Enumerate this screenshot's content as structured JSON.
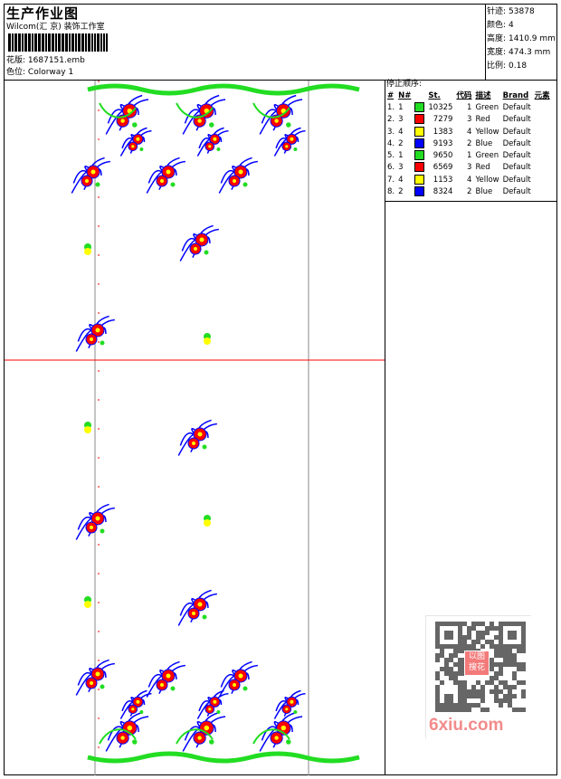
{
  "header": {
    "title": "生产作业图",
    "company": "Wilcom(汇 京) 装饰工作室",
    "design_label": "花版:",
    "design_value": "1687151.emb",
    "colorway_label": "色位:",
    "colorway_value": "Colorway 1"
  },
  "stats": [
    {
      "label": "针迹:",
      "value": "53878"
    },
    {
      "label": "颜色:",
      "value": "4"
    },
    {
      "label": "高度:",
      "value": "1410.9 mm"
    },
    {
      "label": "宽度:",
      "value": "474.3 mm"
    },
    {
      "label": "比例:",
      "value": "0.18"
    }
  ],
  "stop_sequence": {
    "title": "停止顺序:",
    "columns": [
      "#",
      "N#",
      "",
      "St.",
      "代码",
      "描述",
      "Brand",
      "元素"
    ],
    "rows": [
      {
        "idx": "1.",
        "n": "1",
        "color": "#22dd22",
        "st": "10325",
        "code": "1",
        "desc": "Green",
        "brand": "Default"
      },
      {
        "idx": "2.",
        "n": "3",
        "color": "#ff0000",
        "st": "7279",
        "code": "3",
        "desc": "Red",
        "brand": "Default"
      },
      {
        "idx": "3.",
        "n": "4",
        "color": "#ffff00",
        "st": "1383",
        "code": "4",
        "desc": "Yellow",
        "brand": "Default"
      },
      {
        "idx": "4.",
        "n": "2",
        "color": "#0000ff",
        "st": "9193",
        "code": "2",
        "desc": "Blue",
        "brand": "Default"
      },
      {
        "idx": "5.",
        "n": "1",
        "color": "#22dd22",
        "st": "9650",
        "code": "1",
        "desc": "Green",
        "brand": "Default"
      },
      {
        "idx": "6.",
        "n": "3",
        "color": "#ff0000",
        "st": "6569",
        "code": "3",
        "desc": "Red",
        "brand": "Default"
      },
      {
        "idx": "7.",
        "n": "4",
        "color": "#ffff00",
        "st": "1153",
        "code": "4",
        "desc": "Yellow",
        "brand": "Default"
      },
      {
        "idx": "8.",
        "n": "2",
        "color": "#0000ff",
        "st": "8324",
        "code": "2",
        "desc": "Blue",
        "brand": "Default"
      }
    ]
  },
  "watermark": {
    "text": "6xiu.com",
    "stamp": "以图搜花"
  },
  "colors": {
    "green": "#22dd22",
    "red": "#ff0000",
    "yellow": "#ffff00",
    "blue": "#0000ff"
  }
}
